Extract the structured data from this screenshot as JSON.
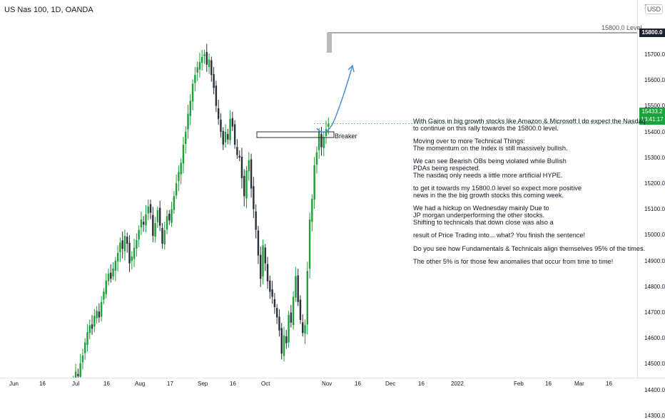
{
  "title": "US Nas 100, 1D, OANDA",
  "currency": "USD",
  "y_axis_top_partial": "15",
  "colors": {
    "up": "#1f9e3a",
    "down": "#2a2e39",
    "projection": "#4a90d9",
    "level_line": "#555555",
    "price_badge": "#1aa33d",
    "level_badge": "#1e222d"
  },
  "level": {
    "label": "15800.0 Level",
    "badge": "15800.0"
  },
  "last_price": {
    "value": "15433.2",
    "countdown": "13:41:17"
  },
  "breaker": {
    "label": "Breaker"
  },
  "annotation": [
    "With Gains in big growth stocks like Amazon & Microsoft I do expect the Nasdaq",
    "to continue on this rally towards the 15800.0 level.",
    "",
    "Moving over to more Technical Things:",
    "The momentum on the Index is still massively bullish.",
    "",
    "We can see Bearish OBs being violated while Bullish",
    "PDAs being respected.",
    "The nasdaq only needs a little more artificial HYPE.",
    "",
    "to get it towards my 15800.0 level so expect more positive",
    "news in the the big growth stocks this coming week.",
    "",
    "We had a hickup on Wednesday mainly Due to",
    "JP morgan underperforming the other stocks.",
    "Shifting to technicals that down close was also a",
    "",
    "result of Price Trading into... what? You finish the sentence!",
    "",
    "Do you see how Fundamentals & Technicals align themselves 95% of the times.",
    "",
    "The other 5% is for those few anomalies that occur from time to time!"
  ],
  "chart_data": {
    "type": "candlestick",
    "symbol": "US Nas 100",
    "interval": "1D",
    "source": "OANDA",
    "y_ticks": [
      15700.0,
      15600.0,
      15500.0,
      15400.0,
      15300.0,
      15200.0,
      15100.0,
      15000.0,
      14900.0,
      14800.0,
      14700.0,
      14600.0,
      14500.0,
      14400.0,
      14300.0
    ],
    "y_tick_labels": [
      "15700.0",
      "15600.0",
      "15500.0",
      "15400.0",
      "15300.0",
      "15200.0",
      "15100.0",
      "15000.0",
      "14900.0",
      "14800.0",
      "14700.0",
      "14600.0",
      "14500.0",
      "14400.0",
      "14300.0"
    ],
    "x_tick_labels": [
      "Jun",
      "16",
      "Jul",
      "16",
      "Aug",
      "17",
      "Sep",
      "16",
      "Oct",
      "Nov",
      "16",
      "Dec",
      "16",
      "2022",
      "Feb",
      "16",
      "Mar",
      "16"
    ],
    "ylim": [
      14210,
      15880
    ],
    "closes": [
      14245,
      14262,
      14275,
      14252,
      14281,
      14301,
      14338,
      14365,
      14352,
      14398,
      14440,
      14472,
      14455,
      14505,
      14535,
      14585,
      14625,
      14652,
      14638,
      14688,
      14708,
      14682,
      14742,
      14782,
      14825,
      14852,
      14832,
      14872,
      14902,
      14932,
      14972,
      14948,
      14998,
      14968,
      14892,
      14918,
      14952,
      14982,
      15022,
      15062,
      15042,
      15082,
      15112,
      15088,
      14998,
      15048,
      15098,
      15038,
      14968,
      15020,
      15075,
      15058,
      15102,
      15152,
      15202,
      15246,
      15282,
      15352,
      15402,
      15472,
      15522,
      15588,
      15622,
      15652,
      15672,
      15692,
      15702,
      15662,
      15682,
      15622,
      15572,
      15502,
      15452,
      15402,
      15352,
      15402,
      15372,
      15452,
      15422,
      15352,
      15312,
      15302,
      15222,
      15152,
      15252,
      15292,
      15182,
      15102,
      15022,
      14922,
      14832,
      14962,
      14892,
      14822,
      14782,
      14762,
      14722,
      14682,
      14632,
      14542,
      14612,
      14582,
      14692,
      14662,
      14762,
      14842,
      14742,
      14672,
      14622,
      14652,
      14862,
      15062,
      15142,
      15272,
      15322,
      15402,
      15342,
      15382,
      15412,
      15433
    ]
  }
}
